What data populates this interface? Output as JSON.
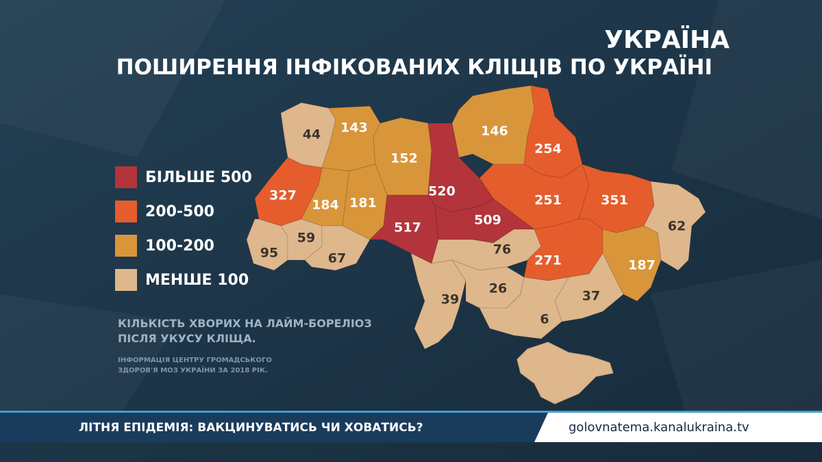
{
  "logo": "УКРАЇНА",
  "title": "ПОШИРЕННЯ ІНФІКОВАНИХ КЛІЩІВ ПО УКРАЇНІ",
  "legend": [
    {
      "label": "БІЛЬШЕ 500",
      "color": "#b3343a"
    },
    {
      "label": "200-500",
      "color": "#e55d2c"
    },
    {
      "label": "100-200",
      "color": "#d9953a"
    },
    {
      "label": "МЕНШЕ 100",
      "color": "#deb78c"
    }
  ],
  "regions": [
    {
      "value": 44,
      "color": "#deb78c"
    },
    {
      "value": 143,
      "color": "#d9953a"
    },
    {
      "value": 152,
      "color": "#d9953a"
    },
    {
      "value": 520,
      "color": "#b3343a"
    },
    {
      "value": 146,
      "color": "#d9953a"
    },
    {
      "value": 254,
      "color": "#e55d2c"
    },
    {
      "value": 327,
      "color": "#e55d2c"
    },
    {
      "value": 184,
      "color": "#d9953a"
    },
    {
      "value": 181,
      "color": "#d9953a"
    },
    {
      "value": 517,
      "color": "#b3343a"
    },
    {
      "value": 509,
      "color": "#b3343a"
    },
    {
      "value": 251,
      "color": "#e55d2c"
    },
    {
      "value": 351,
      "color": "#e55d2c"
    },
    {
      "value": 62,
      "color": "#deb78c"
    },
    {
      "value": 95,
      "color": "#deb78c"
    },
    {
      "value": 59,
      "color": "#deb78c"
    },
    {
      "value": 67,
      "color": "#deb78c"
    },
    {
      "value": 76,
      "color": "#deb78c"
    },
    {
      "value": 271,
      "color": "#e55d2c"
    },
    {
      "value": 187,
      "color": "#d9953a"
    },
    {
      "value": 39,
      "color": "#deb78c"
    },
    {
      "value": 26,
      "color": "#deb78c"
    },
    {
      "value": 37,
      "color": "#deb78c"
    },
    {
      "value": 6,
      "color": "#deb78c"
    }
  ],
  "caption": [
    "КІЛЬКІСТЬ ХВОРИХ НА ЛАЙМ-БОРЕЛІОЗ",
    "ПІСЛЯ УКУСУ КЛІЩА."
  ],
  "source": [
    "ІНФОРМАЦІЯ ЦЕНТРУ ГРОМАДСЬКОГО",
    "ЗДОРОВ'Я МОЗ УКРАЇНИ ЗА 2018 РІК."
  ],
  "ticker": "ЛІТНЯ ЕПІДЕМІЯ: ВАКЦИНУВАТИСЬ ЧИ ХОВАТИСЬ?",
  "url": "golovnatema.kanalukraina.tv"
}
